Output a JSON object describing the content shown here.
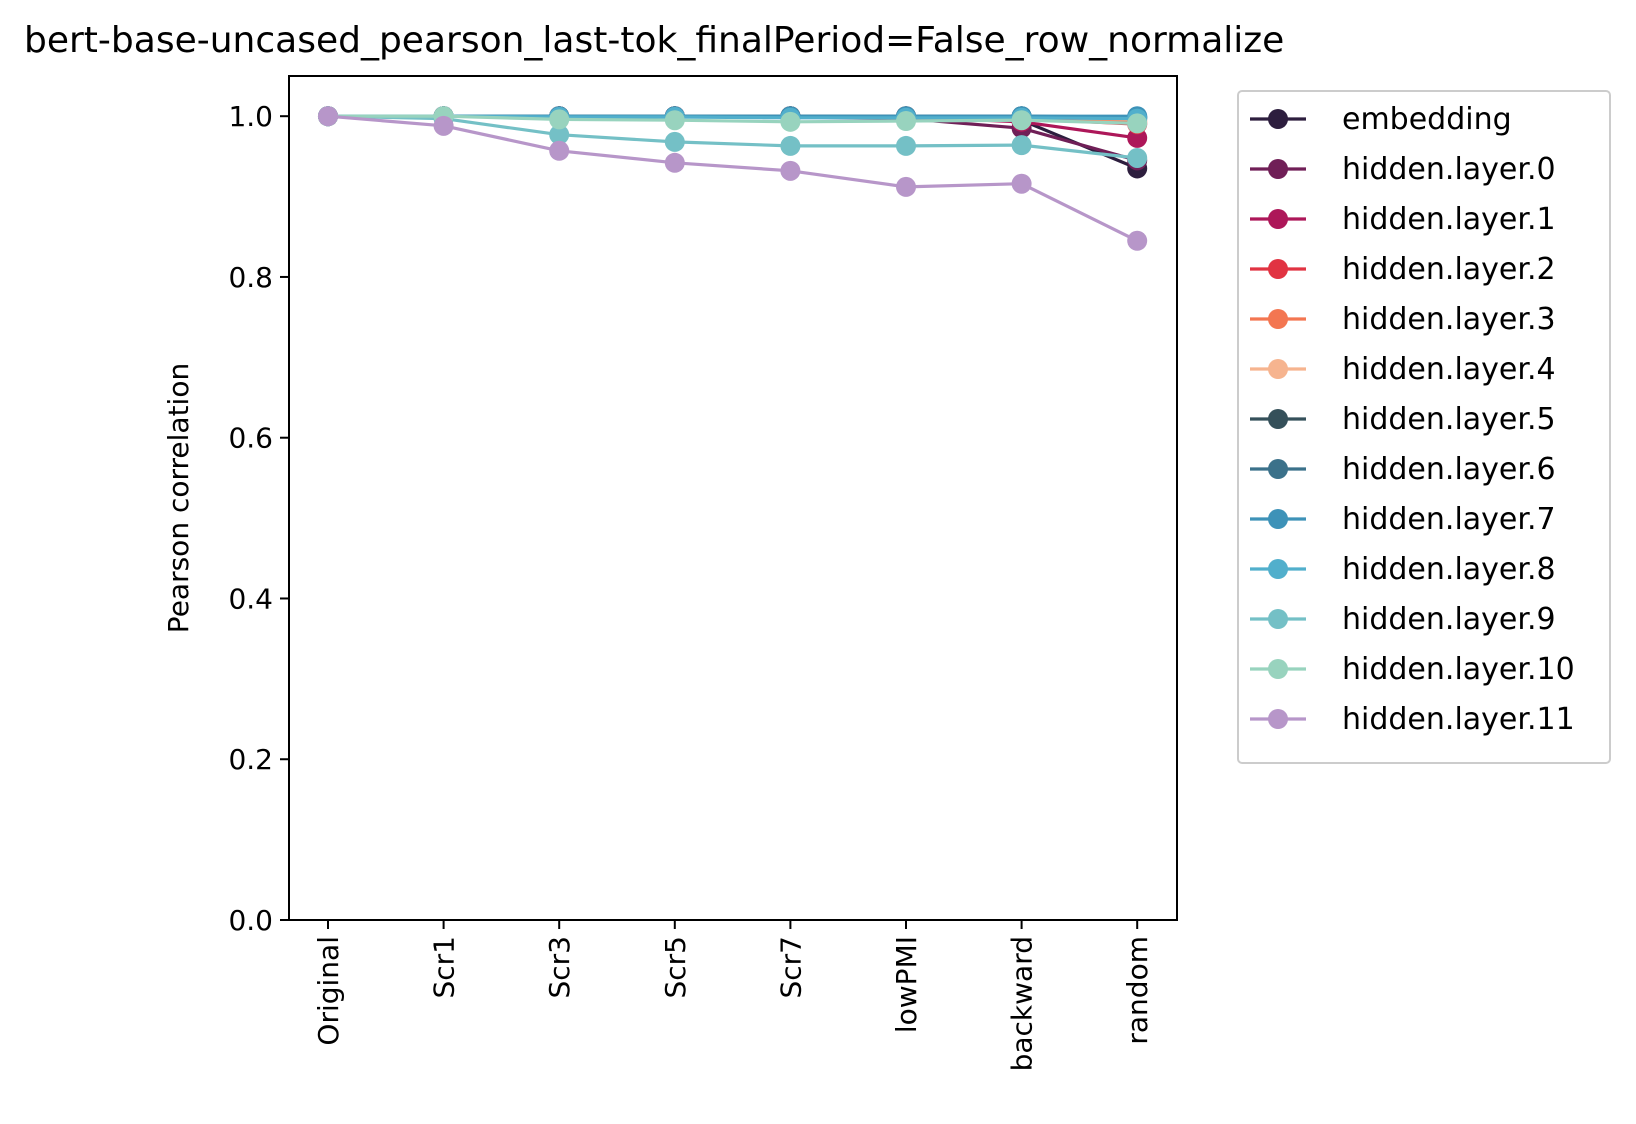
{
  "chart_data": {
    "type": "line",
    "title": "bert-base-uncased_pearson_last-tok_finalPeriod=False_row_normalize",
    "xlabel": "",
    "ylabel": "Pearson correlation",
    "categories": [
      "Original",
      "Scr1",
      "Scr3",
      "Scr5",
      "Scr7",
      "lowPMI",
      "backward",
      "random"
    ],
    "ylim": [
      0.0,
      1.05
    ],
    "yticks": [
      0.0,
      0.2,
      0.4,
      0.6,
      0.8,
      1.0
    ],
    "ytick_labels": [
      "0.0",
      "0.2",
      "0.4",
      "0.6",
      "0.8",
      "1.0"
    ],
    "grid": false,
    "legend_position": "outside-right",
    "series": [
      {
        "name": "embedding",
        "color": "#2d1e3e",
        "values": [
          1.0,
          1.0,
          1.0,
          1.0,
          1.0,
          0.997,
          0.995,
          0.935
        ]
      },
      {
        "name": "hidden.layer.0",
        "color": "#701f57",
        "values": [
          1.0,
          1.0,
          1.0,
          1.0,
          0.999,
          0.997,
          0.985,
          0.945
        ]
      },
      {
        "name": "hidden.layer.1",
        "color": "#ad1759",
        "values": [
          1.0,
          1.0,
          1.0,
          1.0,
          1.0,
          0.999,
          0.993,
          0.973
        ]
      },
      {
        "name": "hidden.layer.2",
        "color": "#e13342",
        "values": [
          1.0,
          1.0,
          1.0,
          1.0,
          1.0,
          1.0,
          0.997,
          0.99
        ]
      },
      {
        "name": "hidden.layer.3",
        "color": "#f37651",
        "values": [
          1.0,
          1.0,
          1.0,
          1.0,
          1.0,
          1.0,
          0.998,
          0.993
        ]
      },
      {
        "name": "hidden.layer.4",
        "color": "#f6b48f",
        "values": [
          1.0,
          1.0,
          1.0,
          1.0,
          1.0,
          1.0,
          0.999,
          0.996
        ]
      },
      {
        "name": "hidden.layer.5",
        "color": "#35505a",
        "values": [
          1.0,
          1.0,
          1.0,
          1.0,
          1.0,
          1.0,
          1.0,
          0.998
        ]
      },
      {
        "name": "hidden.layer.6",
        "color": "#3b718a",
        "values": [
          1.0,
          1.0,
          1.0,
          1.0,
          1.0,
          1.0,
          1.0,
          0.999
        ]
      },
      {
        "name": "hidden.layer.7",
        "color": "#3d92b8",
        "values": [
          1.0,
          1.0,
          1.0,
          1.0,
          1.0,
          1.0,
          1.0,
          1.0
        ]
      },
      {
        "name": "hidden.layer.8",
        "color": "#51afcc",
        "values": [
          1.0,
          1.0,
          0.999,
          0.999,
          0.998,
          0.998,
          0.998,
          0.997
        ]
      },
      {
        "name": "hidden.layer.9",
        "color": "#74c0c6",
        "values": [
          1.0,
          0.997,
          0.977,
          0.968,
          0.963,
          0.963,
          0.964,
          0.948
        ]
      },
      {
        "name": "hidden.layer.10",
        "color": "#98d3be",
        "values": [
          1.0,
          1.0,
          0.996,
          0.995,
          0.993,
          0.994,
          0.995,
          0.991
        ]
      },
      {
        "name": "hidden.layer.11",
        "color": "#b796c9",
        "values": [
          1.0,
          0.988,
          0.957,
          0.942,
          0.932,
          0.912,
          0.916,
          0.845
        ]
      }
    ]
  }
}
